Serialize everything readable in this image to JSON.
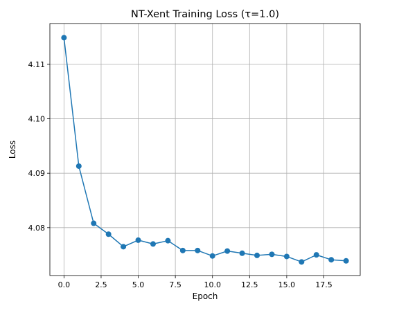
{
  "chart_data": {
    "type": "line",
    "title": "NT-Xent Training Loss (τ=1.0)",
    "xlabel": "Epoch",
    "ylabel": "Loss",
    "xlim": [
      -0.95,
      19.95
    ],
    "ylim": [
      4.0712,
      4.1175
    ],
    "xticks": [
      0.0,
      2.5,
      5.0,
      7.5,
      10.0,
      12.5,
      15.0,
      17.5
    ],
    "xtick_labels": [
      "0.0",
      "2.5",
      "5.0",
      "7.5",
      "10.0",
      "12.5",
      "15.0",
      "17.5"
    ],
    "yticks": [
      4.08,
      4.09,
      4.1,
      4.11
    ],
    "ytick_labels": [
      "4.08",
      "4.09",
      "4.10",
      "4.11"
    ],
    "grid": true,
    "series": [
      {
        "color": "#1f77b4",
        "marker": "circle",
        "x": [
          0,
          1,
          2,
          3,
          4,
          5,
          6,
          7,
          8,
          9,
          10,
          11,
          12,
          13,
          14,
          15,
          16,
          17,
          18,
          19
        ],
        "y": [
          4.1149,
          4.0913,
          4.0808,
          4.0788,
          4.0765,
          4.0777,
          4.077,
          4.0776,
          4.0758,
          4.0758,
          4.0748,
          4.0757,
          4.0753,
          4.0749,
          4.0751,
          4.0747,
          4.0737,
          4.075,
          4.0741,
          4.0739
        ]
      }
    ]
  }
}
